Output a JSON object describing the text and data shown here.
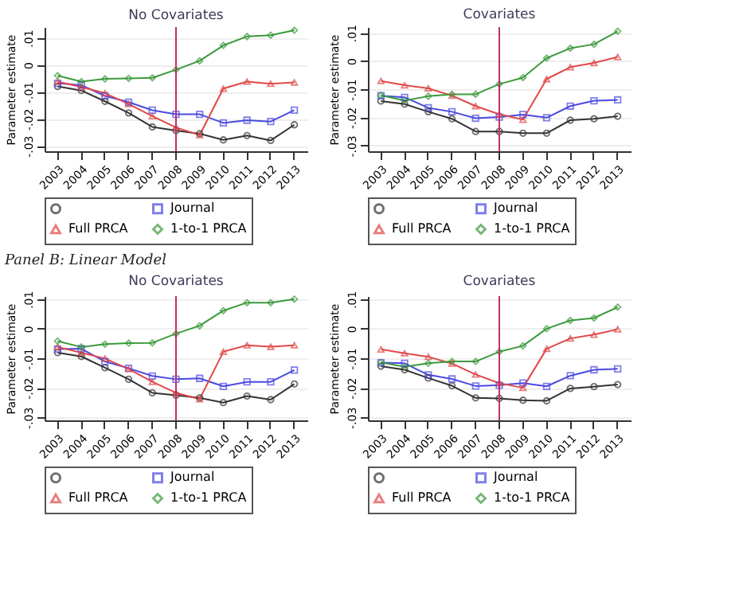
{
  "chart_data": [
    {
      "type": "line",
      "title": "No Covariates",
      "ylabel": "Parameter estimate",
      "categories": [
        "2003",
        "2004",
        "2005",
        "2006",
        "2007",
        "2008",
        "2009",
        "2010",
        "2011",
        "2012",
        "2013"
      ],
      "ylim": [
        -0.032,
        0.014
      ],
      "yticks": [
        {
          "value": -0.03,
          "label": "-.03"
        },
        {
          "value": -0.02,
          "label": "-.02"
        },
        {
          "value": -0.01,
          "label": "-.01"
        },
        {
          "value": 0,
          "label": "0"
        },
        {
          "value": 0.01,
          "label": ".01"
        }
      ],
      "grid": "y",
      "legend": "bottom",
      "line_style": "solid",
      "ref_lines": [
        {
          "axis": "x",
          "value": "2008",
          "color": "#c0306a"
        }
      ],
      "series": [
        {
          "color": "#333333",
          "marker": "circle",
          "values": [
            -0.008,
            -0.0095,
            -0.0135,
            -0.0178,
            -0.023,
            -0.0243,
            -0.0255,
            -0.0278,
            -0.0262,
            -0.028,
            -0.0222
          ]
        },
        {
          "name": "Journal",
          "color": "#4a4ae0",
          "marker": "square",
          "values": [
            -0.0068,
            -0.0075,
            -0.0115,
            -0.0138,
            -0.0168,
            -0.0183,
            -0.0183,
            -0.0215,
            -0.0205,
            -0.021,
            -0.0168
          ]
        },
        {
          "name": "Full PRCA",
          "color": "#e04848",
          "marker": "triangle",
          "values": [
            -0.0062,
            -0.0082,
            -0.0105,
            -0.0145,
            -0.019,
            -0.0232,
            -0.026,
            -0.0088,
            -0.0062,
            -0.007,
            -0.0065
          ]
        },
        {
          "name": "1-to-1 PRCA",
          "color": "#3c9a3c",
          "marker": "diamond",
          "values": [
            -0.004,
            -0.0062,
            -0.0052,
            -0.005,
            -0.0048,
            -0.0018,
            0.0015,
            0.0072,
            0.0105,
            0.011,
            0.0128
          ]
        }
      ]
    },
    {
      "type": "line",
      "title": "Covariates",
      "ylabel": "Parameter estimate",
      "categories": [
        "2003",
        "2004",
        "2005",
        "2006",
        "2007",
        "2008",
        "2009",
        "2010",
        "2011",
        "2012",
        "2013"
      ],
      "ylim": [
        -0.032,
        0.012
      ],
      "yticks": [
        {
          "value": -0.03,
          "label": "-.03"
        },
        {
          "value": -0.02,
          "label": "-.02"
        },
        {
          "value": -0.01,
          "label": "-.01"
        },
        {
          "value": 0,
          "label": "0"
        },
        {
          "value": 0.01,
          "label": ".01"
        }
      ],
      "grid": "y",
      "legend": "bottom",
      "line_style": "solid",
      "ref_lines": [
        {
          "axis": "x",
          "value": "2008",
          "color": "#c0306a"
        }
      ],
      "series": [
        {
          "color": "#333333",
          "marker": "circle",
          "values": [
            -0.0142,
            -0.0153,
            -0.018,
            -0.0205,
            -0.025,
            -0.025,
            -0.0256,
            -0.0256,
            -0.021,
            -0.0205,
            -0.0196
          ]
        },
        {
          "name": "Journal",
          "color": "#4a4ae0",
          "marker": "square",
          "values": [
            -0.0123,
            -0.0129,
            -0.0166,
            -0.018,
            -0.0203,
            -0.0199,
            -0.019,
            -0.0201,
            -0.016,
            -0.0141,
            -0.0138
          ]
        },
        {
          "name": "Full PRCA",
          "color": "#e04848",
          "marker": "triangle",
          "values": [
            -0.0071,
            -0.0086,
            -0.0097,
            -0.0123,
            -0.016,
            -0.0189,
            -0.0208,
            -0.0064,
            -0.0022,
            -0.0007,
            0.0014
          ]
        },
        {
          "name": "1-to-1 PRCA",
          "color": "#3c9a3c",
          "marker": "diamond",
          "values": [
            -0.0122,
            -0.014,
            -0.0125,
            -0.0118,
            -0.0118,
            -0.0082,
            -0.0059,
            0.001,
            0.0045,
            0.0059,
            0.0105
          ]
        }
      ]
    },
    {
      "type": "line",
      "title": "No Covariates",
      "ylabel": "Parameter estimate",
      "annotations": [
        "Panel B: Linear Model"
      ],
      "categories": [
        "2003",
        "2004",
        "2005",
        "2006",
        "2007",
        "2008",
        "2009",
        "2010",
        "2011",
        "2012",
        "2013"
      ],
      "ylim": [
        -0.031,
        0.011
      ],
      "yticks": [
        {
          "value": -0.03,
          "label": "-.03"
        },
        {
          "value": -0.02,
          "label": "-.02"
        },
        {
          "value": -0.01,
          "label": "-.01"
        },
        {
          "value": 0,
          "label": "0"
        },
        {
          "value": 0.01,
          "label": ".01"
        }
      ],
      "grid": "y",
      "legend": "bottom",
      "line_style": "solid",
      "ref_lines": [
        {
          "axis": "x",
          "value": "2008",
          "color": "#c0306a"
        }
      ],
      "series": [
        {
          "color": "#333333",
          "marker": "circle",
          "values": [
            -0.0081,
            -0.0094,
            -0.0132,
            -0.0171,
            -0.0217,
            -0.0225,
            -0.0234,
            -0.025,
            -0.0228,
            -0.024,
            -0.0187
          ]
        },
        {
          "name": "Journal",
          "color": "#4a4ae0",
          "marker": "square",
          "values": [
            -0.0069,
            -0.0068,
            -0.0111,
            -0.0134,
            -0.016,
            -0.0171,
            -0.0168,
            -0.0195,
            -0.018,
            -0.018,
            -0.014
          ]
        },
        {
          "name": "Full PRCA",
          "color": "#e04848",
          "marker": "triangle",
          "values": [
            -0.0062,
            -0.0081,
            -0.0101,
            -0.0136,
            -0.018,
            -0.0217,
            -0.0238,
            -0.0078,
            -0.0056,
            -0.0061,
            -0.0056
          ]
        },
        {
          "name": "1-to-1 PRCA",
          "color": "#3c9a3c",
          "marker": "diamond",
          "values": [
            -0.0042,
            -0.0062,
            -0.0052,
            -0.0049,
            -0.0048,
            -0.0017,
            0.001,
            0.0061,
            0.0088,
            0.0088,
            0.01
          ]
        }
      ]
    },
    {
      "type": "line",
      "title": "Covariates",
      "ylabel": "Parameter estimate",
      "categories": [
        "2003",
        "2004",
        "2005",
        "2006",
        "2007",
        "2008",
        "2009",
        "2010",
        "2011",
        "2012",
        "2013"
      ],
      "ylim": [
        -0.031,
        0.011
      ],
      "yticks": [
        {
          "value": -0.03,
          "label": "-.03"
        },
        {
          "value": -0.02,
          "label": "-.02"
        },
        {
          "value": -0.01,
          "label": "-.01"
        },
        {
          "value": 0,
          "label": "0"
        },
        {
          "value": 0.01,
          "label": ".01"
        }
      ],
      "grid": "y",
      "legend": "bottom",
      "line_style": "solid",
      "ref_lines": [
        {
          "axis": "x",
          "value": "2008",
          "color": "#c0306a"
        }
      ],
      "series": [
        {
          "color": "#333333",
          "marker": "circle",
          "values": [
            -0.0127,
            -0.0139,
            -0.0167,
            -0.0193,
            -0.0234,
            -0.0236,
            -0.0242,
            -0.0244,
            -0.0202,
            -0.0196,
            -0.0189
          ]
        },
        {
          "name": "Journal",
          "color": "#4a4ae0",
          "marker": "square",
          "values": [
            -0.0115,
            -0.0117,
            -0.0156,
            -0.017,
            -0.0194,
            -0.0191,
            -0.0184,
            -0.0195,
            -0.0159,
            -0.0139,
            -0.0136
          ]
        },
        {
          "name": "Full PRCA",
          "color": "#e04848",
          "marker": "triangle",
          "values": [
            -0.007,
            -0.0083,
            -0.0095,
            -0.0118,
            -0.0155,
            -0.0184,
            -0.02,
            -0.0068,
            -0.0033,
            -0.002,
            -0.0002
          ]
        },
        {
          "name": "1-to-1 PRCA",
          "color": "#3c9a3c",
          "marker": "diamond",
          "values": [
            -0.0114,
            -0.0129,
            -0.0117,
            -0.0111,
            -0.0111,
            -0.0078,
            -0.0058,
            0,
            0.0028,
            0.0036,
            0.0073
          ]
        }
      ]
    }
  ]
}
